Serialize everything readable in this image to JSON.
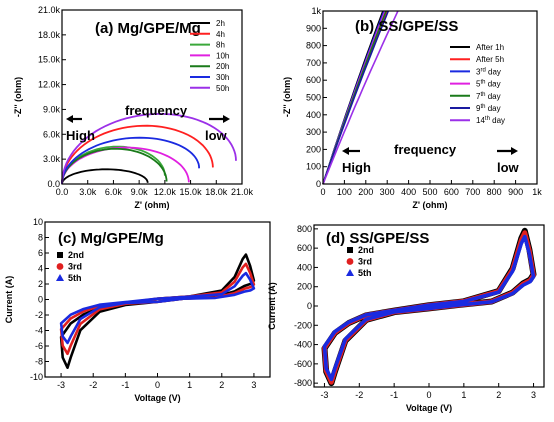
{
  "chart_data": [
    {
      "id": "a",
      "type": "scatter",
      "title": "(a) Mg/GPE/Mg",
      "xlabel": "Z' (ohm)",
      "ylabel": "-Z'' (ohm)",
      "xlim": [
        0,
        21000
      ],
      "ylim": [
        0,
        21000
      ],
      "xticks": [
        "0.0",
        "3.0k",
        "6.0k",
        "9.0k",
        "12.0k",
        "15.0k",
        "18.0k",
        "21.0k"
      ],
      "yticks": [
        "0.0",
        "3.0k",
        "6.0k",
        "9.0k",
        "12.0k",
        "15.0k",
        "18.0k",
        "21.0k"
      ],
      "annotations": {
        "high": "High",
        "frequency": "frequency",
        "low": "low"
      },
      "legend_position": "top-right",
      "series": [
        {
          "name": "2h",
          "color": "#000000",
          "x0": 0,
          "x1": 10000,
          "peak": 1700,
          "tail": 150
        },
        {
          "name": "4h",
          "color": "#ff2020",
          "x0": 0,
          "x1": 17600,
          "peak": 6000,
          "tail": 2000
        },
        {
          "name": "8h",
          "color": "#3aa83a",
          "x0": 0,
          "x1": 12000,
          "peak": 4000,
          "tail": 1000
        },
        {
          "name": "10h",
          "color": "#e020e0",
          "x0": 0,
          "x1": 14800,
          "peak": 4300,
          "tail": 200
        },
        {
          "name": "20h",
          "color": "#1a7a1a",
          "x0": 0,
          "x1": 12200,
          "peak": 4100,
          "tail": 300
        },
        {
          "name": "30h",
          "color": "#1a2ae0",
          "x0": 0,
          "x1": 16000,
          "peak": 4600,
          "tail": 1900
        },
        {
          "name": "50h",
          "color": "#9b30e8",
          "x0": 0,
          "x1": 20300,
          "peak": 7000,
          "tail": 2800
        }
      ]
    },
    {
      "id": "b",
      "type": "line",
      "title": "(b) SS/GPE/SS",
      "xlabel": "Z' (ohm)",
      "ylabel": "-Z'' (ohm)",
      "xlim": [
        0,
        1000
      ],
      "ylim": [
        0,
        1000
      ],
      "xticks": [
        "0",
        "100",
        "200",
        "300",
        "400",
        "500",
        "600",
        "700",
        "800",
        "900",
        "1k"
      ],
      "yticks": [
        "0",
        "100",
        "200",
        "300",
        "400",
        "500",
        "600",
        "700",
        "800",
        "900",
        "1k"
      ],
      "annotations": {
        "high": "High",
        "frequency": "frequency",
        "low": "low"
      },
      "legend_position": "right",
      "series": [
        {
          "name": "After 1h",
          "label_sup": "",
          "label_rest": "",
          "color": "#000000",
          "x_at_top": 280
        },
        {
          "name": "After 5h",
          "label_sup": "",
          "label_rest": "",
          "color": "#ff2020",
          "x_at_top": 300
        },
        {
          "name": "3",
          "label_sup": "rd",
          "label_rest": " day",
          "color": "#1a2ae0",
          "x_at_top": 285
        },
        {
          "name": "5",
          "label_sup": "th",
          "label_rest": " day",
          "color": "#e020e0",
          "x_at_top": 290
        },
        {
          "name": "7",
          "label_sup": "th",
          "label_rest": " day",
          "color": "#1a7a1a",
          "x_at_top": 295
        },
        {
          "name": "9",
          "label_sup": "th",
          "label_rest": " day",
          "color": "#1a1aa0",
          "x_at_top": 305
        },
        {
          "name": "14",
          "label_sup": "th",
          "label_rest": " day",
          "color": "#9b30e8",
          "x_at_top": 350
        }
      ]
    },
    {
      "id": "c",
      "type": "scatter",
      "title": "(c) Mg/GPE/Mg",
      "xlabel": "Voltage (V)",
      "ylabel": "Current (A)",
      "xlim": [
        -3.5,
        3.5
      ],
      "ylim": [
        -10,
        10
      ],
      "xticks": [
        "-3",
        "-2",
        "-1",
        "0",
        "1",
        "2",
        "3"
      ],
      "yticks": [
        "-10",
        "-8",
        "-6",
        "-4",
        "-2",
        "0",
        "2",
        "4",
        "6",
        "8",
        "10"
      ],
      "legend_position": "top-left",
      "series": [
        {
          "name": "2nd",
          "color": "#000000",
          "marker": "square",
          "neg_peak": -8.8,
          "pos_peak": 5.8
        },
        {
          "name": "3rd",
          "color": "#e02020",
          "marker": "circle",
          "neg_peak": -7.0,
          "pos_peak": 4.6
        },
        {
          "name": "5th",
          "color": "#1a2ae0",
          "marker": "triangle",
          "neg_peak": -5.6,
          "pos_peak": 3.4
        }
      ]
    },
    {
      "id": "d",
      "type": "scatter",
      "title": "(d) SS/GPE/SS",
      "xlabel": "Voltage (V)",
      "ylabel": "Current (A)",
      "xlim": [
        -3.3,
        3.3
      ],
      "ylim": [
        -840,
        840
      ],
      "xticks": [
        "-3",
        "-2",
        "-1",
        "0",
        "1",
        "2",
        "3"
      ],
      "yticks": [
        "-800",
        "-600",
        "-400",
        "-200",
        "0",
        "200",
        "400",
        "600",
        "800"
      ],
      "legend_position": "top-left",
      "series": [
        {
          "name": "2nd",
          "color": "#000000",
          "marker": "square",
          "neg_peak": -800,
          "pos_peak": 780
        },
        {
          "name": "3rd",
          "color": "#e02020",
          "marker": "circle",
          "neg_peak": -790,
          "pos_peak": 760
        },
        {
          "name": "5th",
          "color": "#1a2ae0",
          "marker": "triangle",
          "neg_peak": -760,
          "pos_peak": 720
        }
      ]
    }
  ]
}
